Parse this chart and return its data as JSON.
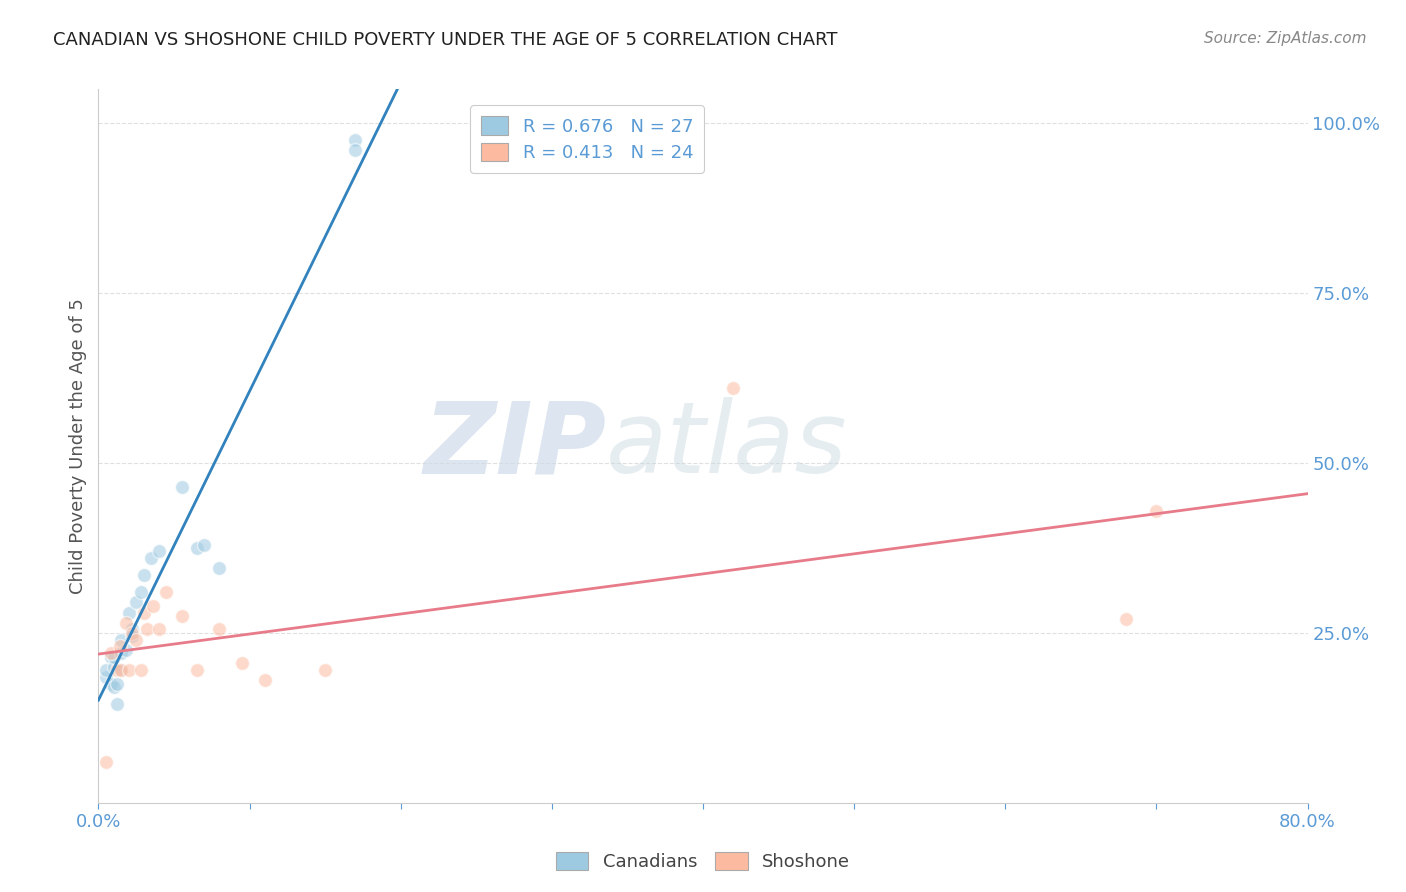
{
  "title": "CANADIAN VS SHOSHONE CHILD POVERTY UNDER THE AGE OF 5 CORRELATION CHART",
  "source": "Source: ZipAtlas.com",
  "ylabel": "Child Poverty Under the Age of 5",
  "xlim": [
    0.0,
    0.8
  ],
  "ylim": [
    0.0,
    1.05
  ],
  "xticks": [
    0.0,
    0.1,
    0.2,
    0.3,
    0.4,
    0.5,
    0.6,
    0.7,
    0.8
  ],
  "xticklabels": [
    "0.0%",
    "",
    "",
    "",
    "",
    "",
    "",
    "",
    "80.0%"
  ],
  "yticks": [
    0.25,
    0.5,
    0.75,
    1.0
  ],
  "yticklabels": [
    "25.0%",
    "50.0%",
    "75.0%",
    "100.0%"
  ],
  "canadians_x": [
    0.005,
    0.005,
    0.008,
    0.008,
    0.01,
    0.01,
    0.01,
    0.012,
    0.012,
    0.014,
    0.015,
    0.015,
    0.018,
    0.02,
    0.022,
    0.022,
    0.025,
    0.028,
    0.03,
    0.035,
    0.04,
    0.055,
    0.065,
    0.07,
    0.08,
    0.17,
    0.17
  ],
  "canadians_y": [
    0.185,
    0.195,
    0.175,
    0.215,
    0.17,
    0.2,
    0.215,
    0.145,
    0.175,
    0.195,
    0.22,
    0.24,
    0.225,
    0.28,
    0.255,
    0.245,
    0.295,
    0.31,
    0.335,
    0.36,
    0.37,
    0.465,
    0.375,
    0.38,
    0.345,
    0.975,
    0.96
  ],
  "shoshone_x": [
    0.005,
    0.008,
    0.012,
    0.014,
    0.015,
    0.018,
    0.02,
    0.022,
    0.025,
    0.028,
    0.03,
    0.032,
    0.036,
    0.04,
    0.045,
    0.055,
    0.065,
    0.08,
    0.095,
    0.11,
    0.15,
    0.42,
    0.68,
    0.7
  ],
  "shoshone_y": [
    0.06,
    0.22,
    0.195,
    0.23,
    0.195,
    0.265,
    0.195,
    0.25,
    0.24,
    0.195,
    0.28,
    0.255,
    0.29,
    0.255,
    0.31,
    0.275,
    0.195,
    0.255,
    0.205,
    0.18,
    0.195,
    0.61,
    0.27,
    0.43
  ],
  "canadian_color": "#9ecae1",
  "shoshone_color": "#fcbba1",
  "canadian_line_color": "#3182bd",
  "shoshone_line_color": "#e87b8a",
  "legend_R_canadian": "R = 0.676",
  "legend_N_canadian": "N = 27",
  "legend_R_shoshone": "R = 0.413",
  "legend_N_shoshone": "N = 24",
  "watermark_zip": "ZIP",
  "watermark_atlas": "atlas",
  "marker_size": 100,
  "alpha_scatter": 0.55,
  "grid_color": "#e0e0e0",
  "title_fontsize": 13,
  "tick_fontsize": 13,
  "label_fontsize": 13
}
